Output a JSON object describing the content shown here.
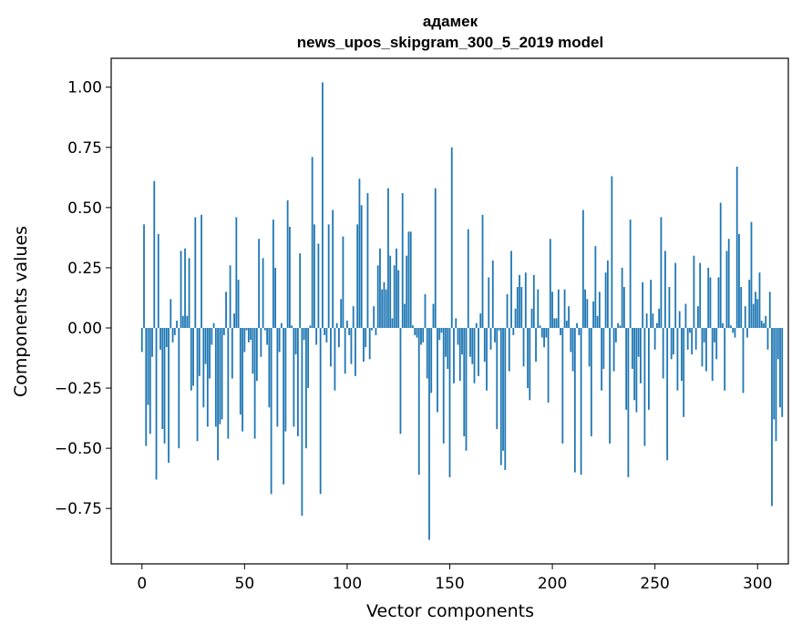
{
  "chart_data": {
    "type": "bar",
    "title": "адамек",
    "subtitle": "news_upos_skipgram_300_5_2019 model",
    "xlabel": "Vector components",
    "ylabel": "Components values",
    "xlim": [
      -15,
      315
    ],
    "ylim": [
      -0.98,
      1.12
    ],
    "x_ticks": [
      0,
      50,
      100,
      150,
      200,
      250,
      300
    ],
    "x_tick_labels": [
      "0",
      "50",
      "100",
      "150",
      "200",
      "250",
      "300"
    ],
    "y_ticks": [
      1.0,
      0.75,
      0.5,
      0.25,
      0.0,
      -0.25,
      -0.5,
      -0.75
    ],
    "y_tick_labels": [
      "1.00",
      "0.75",
      "0.50",
      "0.25",
      "0.00",
      "−0.25",
      "−0.50",
      "−0.75"
    ],
    "grid": false,
    "bar_color": "#1f77b4",
    "bar_width": 0.8,
    "values": [
      -0.1,
      0.43,
      -0.49,
      -0.32,
      -0.44,
      -0.12,
      0.61,
      -0.63,
      0.39,
      -0.09,
      -0.42,
      -0.48,
      -0.08,
      -0.56,
      0.12,
      -0.06,
      -0.03,
      0.03,
      -0.5,
      0.32,
      0.05,
      0.33,
      0.05,
      0.29,
      -0.26,
      -0.24,
      0.46,
      -0.47,
      -0.2,
      0.47,
      -0.33,
      -0.15,
      -0.41,
      -0.21,
      -0.07,
      0.02,
      -0.41,
      -0.55,
      -0.4,
      -0.38,
      -0.03,
      0.15,
      -0.46,
      0.26,
      -0.21,
      0.06,
      0.46,
      0.2,
      -0.36,
      -0.43,
      -0.1,
      -0.01,
      -0.06,
      -0.05,
      -0.19,
      -0.46,
      -0.22,
      0.37,
      -0.12,
      0.29,
      -0.01,
      -0.07,
      -0.33,
      -0.69,
      0.45,
      0.25,
      -0.41,
      -0.1,
      0.02,
      -0.65,
      -0.43,
      0.53,
      0.42,
      0.01,
      -0.41,
      -0.11,
      -0.45,
      0.31,
      -0.78,
      -0.05,
      -0.5,
      -0.25,
      0.01,
      0.71,
      0.43,
      -0.07,
      0.35,
      -0.69,
      1.02,
      -0.03,
      -0.06,
      0.43,
      -0.16,
      0.49,
      -0.26,
      0.02,
      -0.08,
      0.12,
      0.38,
      -0.19,
      0.03,
      -0.03,
      -0.15,
      0.09,
      -0.2,
      0.43,
      0.62,
      0.51,
      -0.14,
      -0.08,
      0.56,
      -0.13,
      -0.01,
      0.09,
      -0.03,
      0.26,
      0.33,
      0.16,
      0.19,
      0.16,
      0.58,
      0.3,
      0.04,
      0.26,
      0.33,
      0.24,
      -0.44,
      0.56,
      0.1,
      0.3,
      0.4,
      0.4,
      0.01,
      -0.03,
      -0.04,
      -0.61,
      -0.07,
      -0.06,
      0.14,
      -0.21,
      -0.88,
      -0.27,
      0.1,
      0.58,
      -0.35,
      -0.05,
      -0.02,
      -0.48,
      -0.12,
      -0.17,
      -0.62,
      0.75,
      -0.23,
      0.04,
      -0.07,
      -0.22,
      -0.11,
      -0.45,
      -0.51,
      0.41,
      -0.12,
      -0.15,
      -0.23,
      0.02,
      -0.2,
      0.06,
      0.47,
      -0.14,
      -0.26,
      0.21,
      -0.09,
      0.28,
      -0.06,
      -0.42,
      -0.01,
      -0.57,
      -0.51,
      -0.59,
      0.14,
      -0.18,
      0.32,
      -0.03,
      0.08,
      0.17,
      0.22,
      0.17,
      -0.16,
      0.23,
      -0.25,
      -0.3,
      0.08,
      0.22,
      -0.14,
      0.16,
      0.01,
      -0.04,
      -0.08,
      -0.04,
      -0.31,
      0.37,
      0.15,
      0.04,
      0.04,
      0.16,
      -0.03,
      -0.48,
      0.16,
      0.03,
      0.09,
      -0.1,
      -0.18,
      -0.6,
      0.02,
      -0.03,
      -0.61,
      0.49,
      0.16,
      0.12,
      -0.16,
      -0.45,
      0.11,
      0.34,
      0.05,
      0.15,
      -0.26,
      -0.17,
      0.23,
      0.28,
      -0.48,
      0.63,
      -0.18,
      -0.06,
      0.02,
      0.01,
      0.25,
      0.17,
      -0.34,
      -0.62,
      0.45,
      -0.17,
      -0.3,
      -0.35,
      -0.12,
      -0.23,
      0.19,
      -0.49,
      0.06,
      -0.34,
      0.2,
      0.06,
      -0.09,
      0.02,
      0.08,
      0.46,
      -0.21,
      0.32,
      -0.55,
      0.17,
      -0.13,
      -0.11,
      0.27,
      -0.26,
      0.07,
      -0.22,
      -0.37,
      0.1,
      -0.09,
      -0.02,
      -0.11,
      0.3,
      -0.09,
      0.09,
      0.27,
      -0.16,
      -0.06,
      -0.18,
      0.25,
      0.21,
      -0.22,
      -0.06,
      -0.13,
      0.21,
      0.52,
      0.02,
      -0.26,
      0.32,
      0.37,
      0.01,
      -0.02,
      -0.04,
      0.67,
      0.39,
      0.17,
      -0.27,
      0.09,
      -0.04,
      0.2,
      0.44,
      0.1,
      0.15,
      0.12,
      0.23,
      0.03,
      0.02,
      0.05,
      -0.09,
      0.15,
      -0.74,
      -0.38,
      -0.47,
      -0.13,
      -0.33,
      -0.37
    ]
  }
}
